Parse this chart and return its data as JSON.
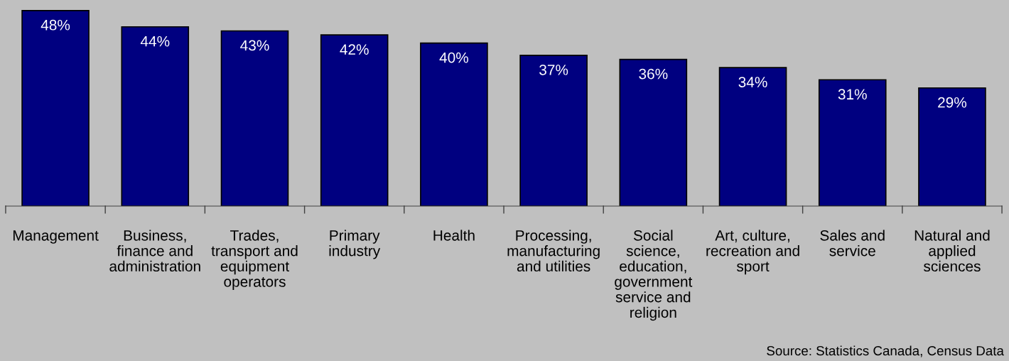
{
  "chart_data": {
    "type": "bar",
    "categories": [
      "Management",
      "Business, finance and administration",
      "Trades, transport and equipment operators",
      "Primary industry",
      "Health",
      "Processing, manufacturing and utilities",
      "Social science, education, government service and religion",
      "Art, culture, recreation and sport",
      "Sales and service",
      "Natural and applied sciences"
    ],
    "values": [
      48,
      44,
      43,
      42,
      40,
      37,
      36,
      34,
      31,
      29
    ],
    "value_labels": [
      "48%",
      "44%",
      "43%",
      "42%",
      "40%",
      "37%",
      "36%",
      "34%",
      "31%",
      "29%"
    ],
    "color": "#000080",
    "grid": false,
    "legend": false,
    "annotations": [
      "Source: Statistics Canada, Census Data"
    ]
  }
}
